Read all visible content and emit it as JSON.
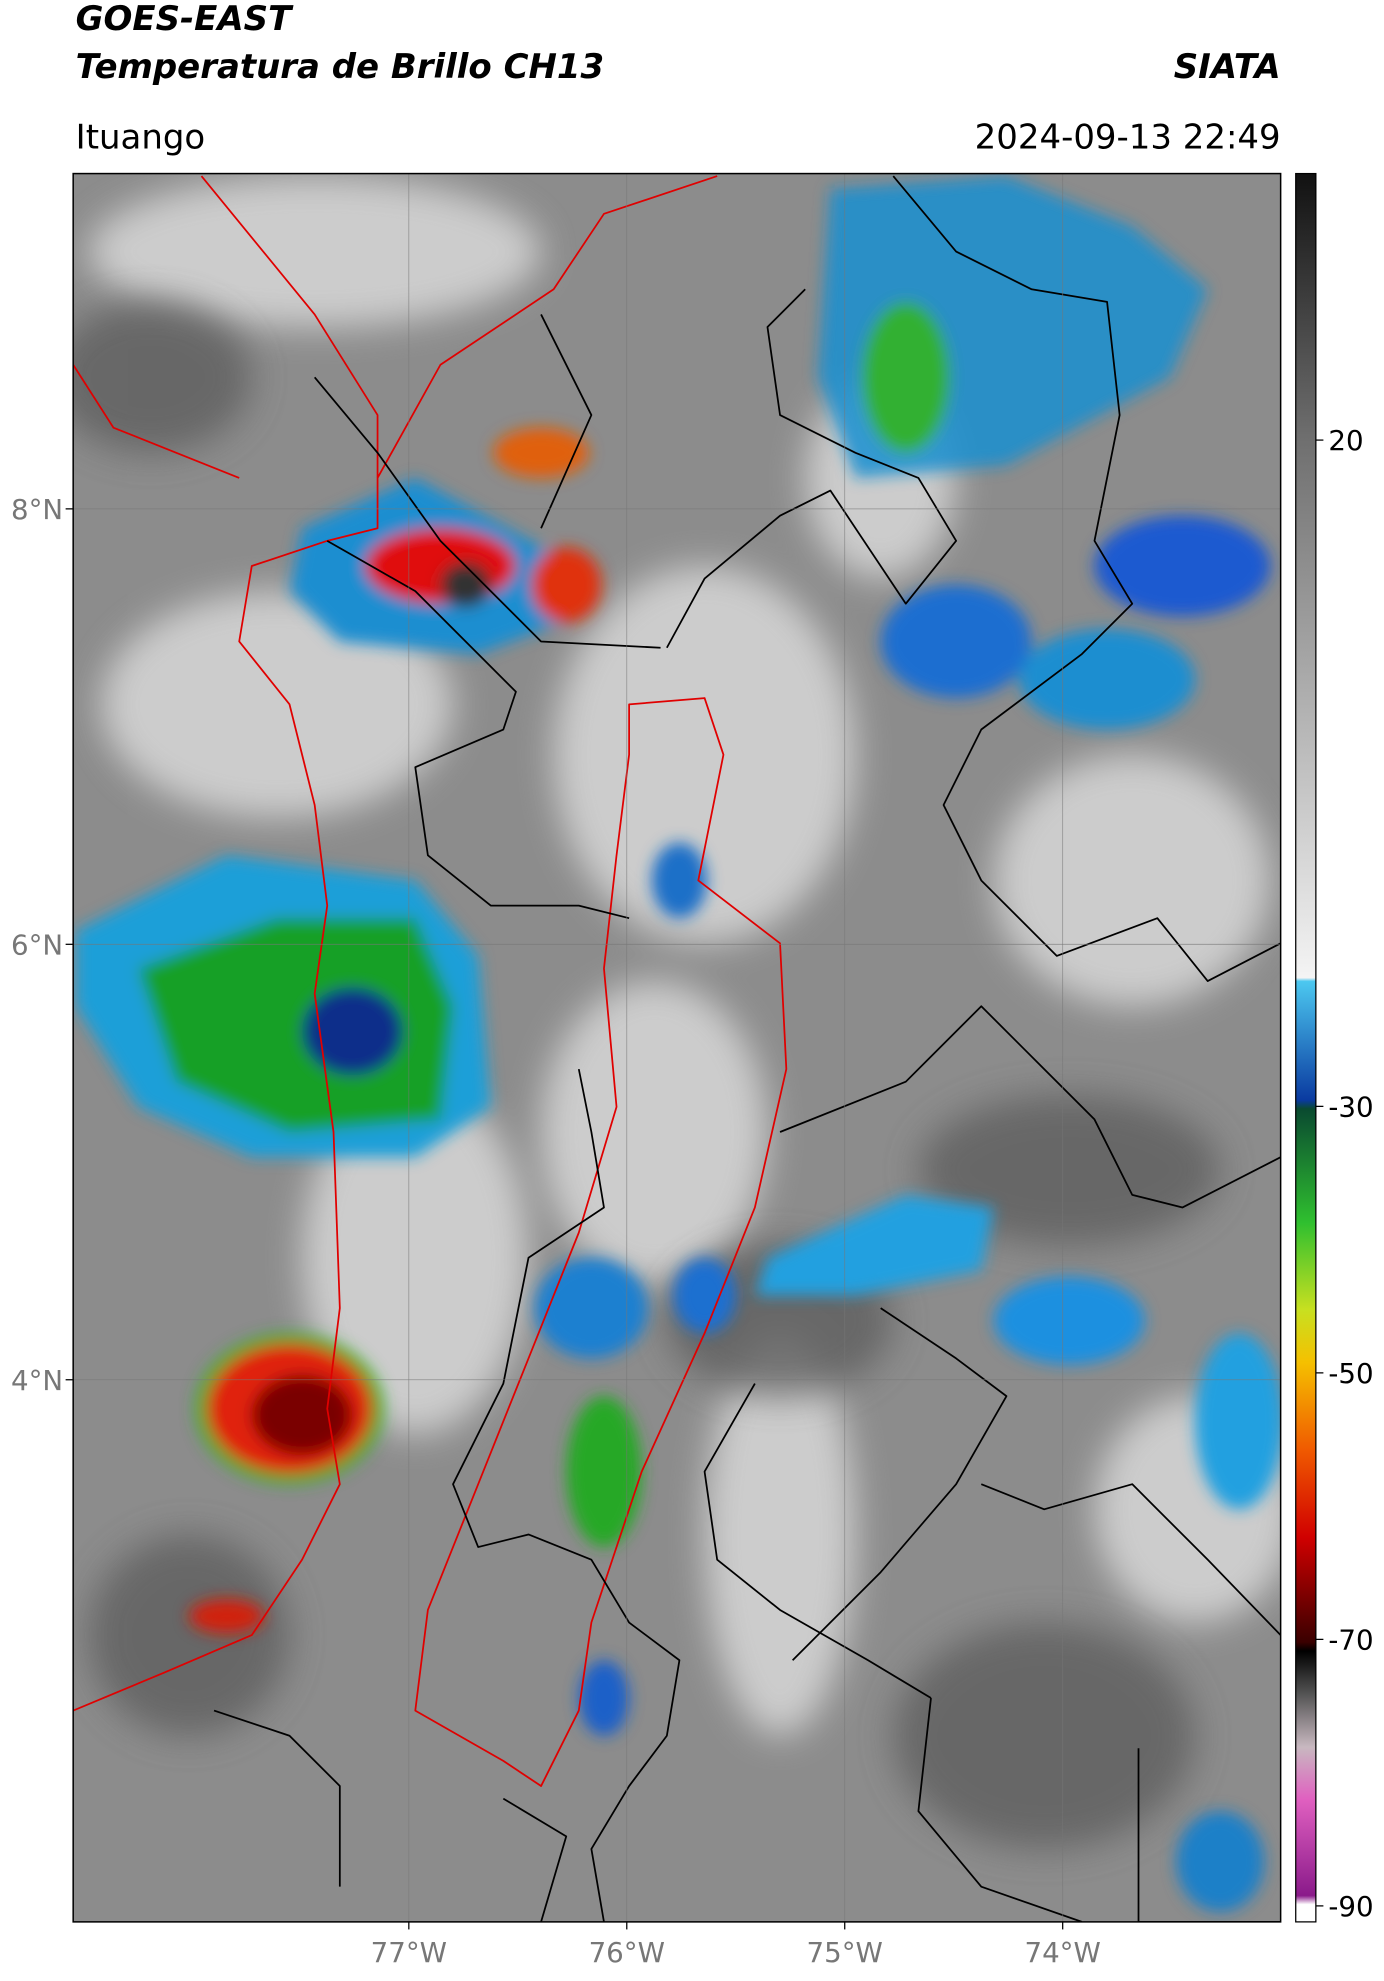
{
  "header": {
    "title": "GOES-EAST",
    "subtitle": "Temperatura de Brillo CH13",
    "brand": "SIATA",
    "location": "Ituango",
    "datetime": "2024-09-13 22:49"
  },
  "map": {
    "lonlim": [
      -78.54,
      -73.0
    ],
    "latlim": [
      1.51,
      9.54
    ],
    "lat_ticks": [
      {
        "value": 8,
        "label": "8°N"
      },
      {
        "value": 6,
        "label": "6°N"
      },
      {
        "value": 4,
        "label": "4°N"
      }
    ],
    "lon_ticks": [
      {
        "value": -77,
        "label": "77°W"
      },
      {
        "value": -76,
        "label": "76°W"
      },
      {
        "value": -75,
        "label": "75°W"
      },
      {
        "value": -74,
        "label": "74°W"
      }
    ],
    "grid": true
  },
  "colorbar": {
    "clim": [
      -91.2,
      40
    ],
    "ticks": [
      20,
      -30,
      -50,
      -70,
      -90
    ]
  }
}
